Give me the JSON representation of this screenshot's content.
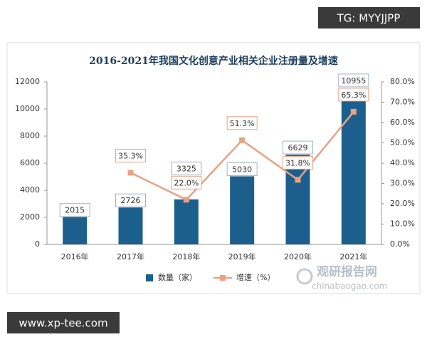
{
  "chart_data": {
    "type": "bar-line",
    "title": "2016-2021年我国文化创意产业相关企业注册量及增速",
    "categories": [
      "2016年",
      "2017年",
      "2018年",
      "2019年",
      "2020年",
      "2021年"
    ],
    "series": [
      {
        "name": "数量（家）",
        "color": "#1d5f8c",
        "type": "bar",
        "values": [
          2015,
          2726,
          3325,
          5030,
          6629,
          10955
        ]
      },
      {
        "name": "增速（%）",
        "color": "#e9a183",
        "type": "line",
        "axis": "y2",
        "values": [
          null,
          35.3,
          22.0,
          51.3,
          31.8,
          65.3
        ],
        "value_labels": [
          null,
          "35.3%",
          "22.0%",
          "51.3%",
          "31.8%",
          "65.3%"
        ]
      }
    ],
    "ylim": [
      0,
      12000
    ],
    "yticks": [
      0,
      2000,
      4000,
      6000,
      8000,
      10000,
      12000
    ],
    "y2lim": [
      0,
      80
    ],
    "y2ticks": [
      {
        "value": 0,
        "label": "0.0%"
      },
      {
        "value": 10,
        "label": "10.0%"
      },
      {
        "value": 20,
        "label": "20.0%"
      },
      {
        "value": 30,
        "label": "30.0%"
      },
      {
        "value": 40,
        "label": "40.0%"
      },
      {
        "value": 50,
        "label": "50.0%"
      },
      {
        "value": 60,
        "label": "60.0%"
      },
      {
        "value": 70,
        "label": "70.0%"
      },
      {
        "value": 80,
        "label": "80.0%"
      }
    ],
    "legend": "bottom"
  },
  "watermarks": {
    "top": "TG: MYYJJPP",
    "bottom": "www.xp-tee.com",
    "logo": "观研报告网",
    "logo_url": "chinabaogao.com"
  }
}
